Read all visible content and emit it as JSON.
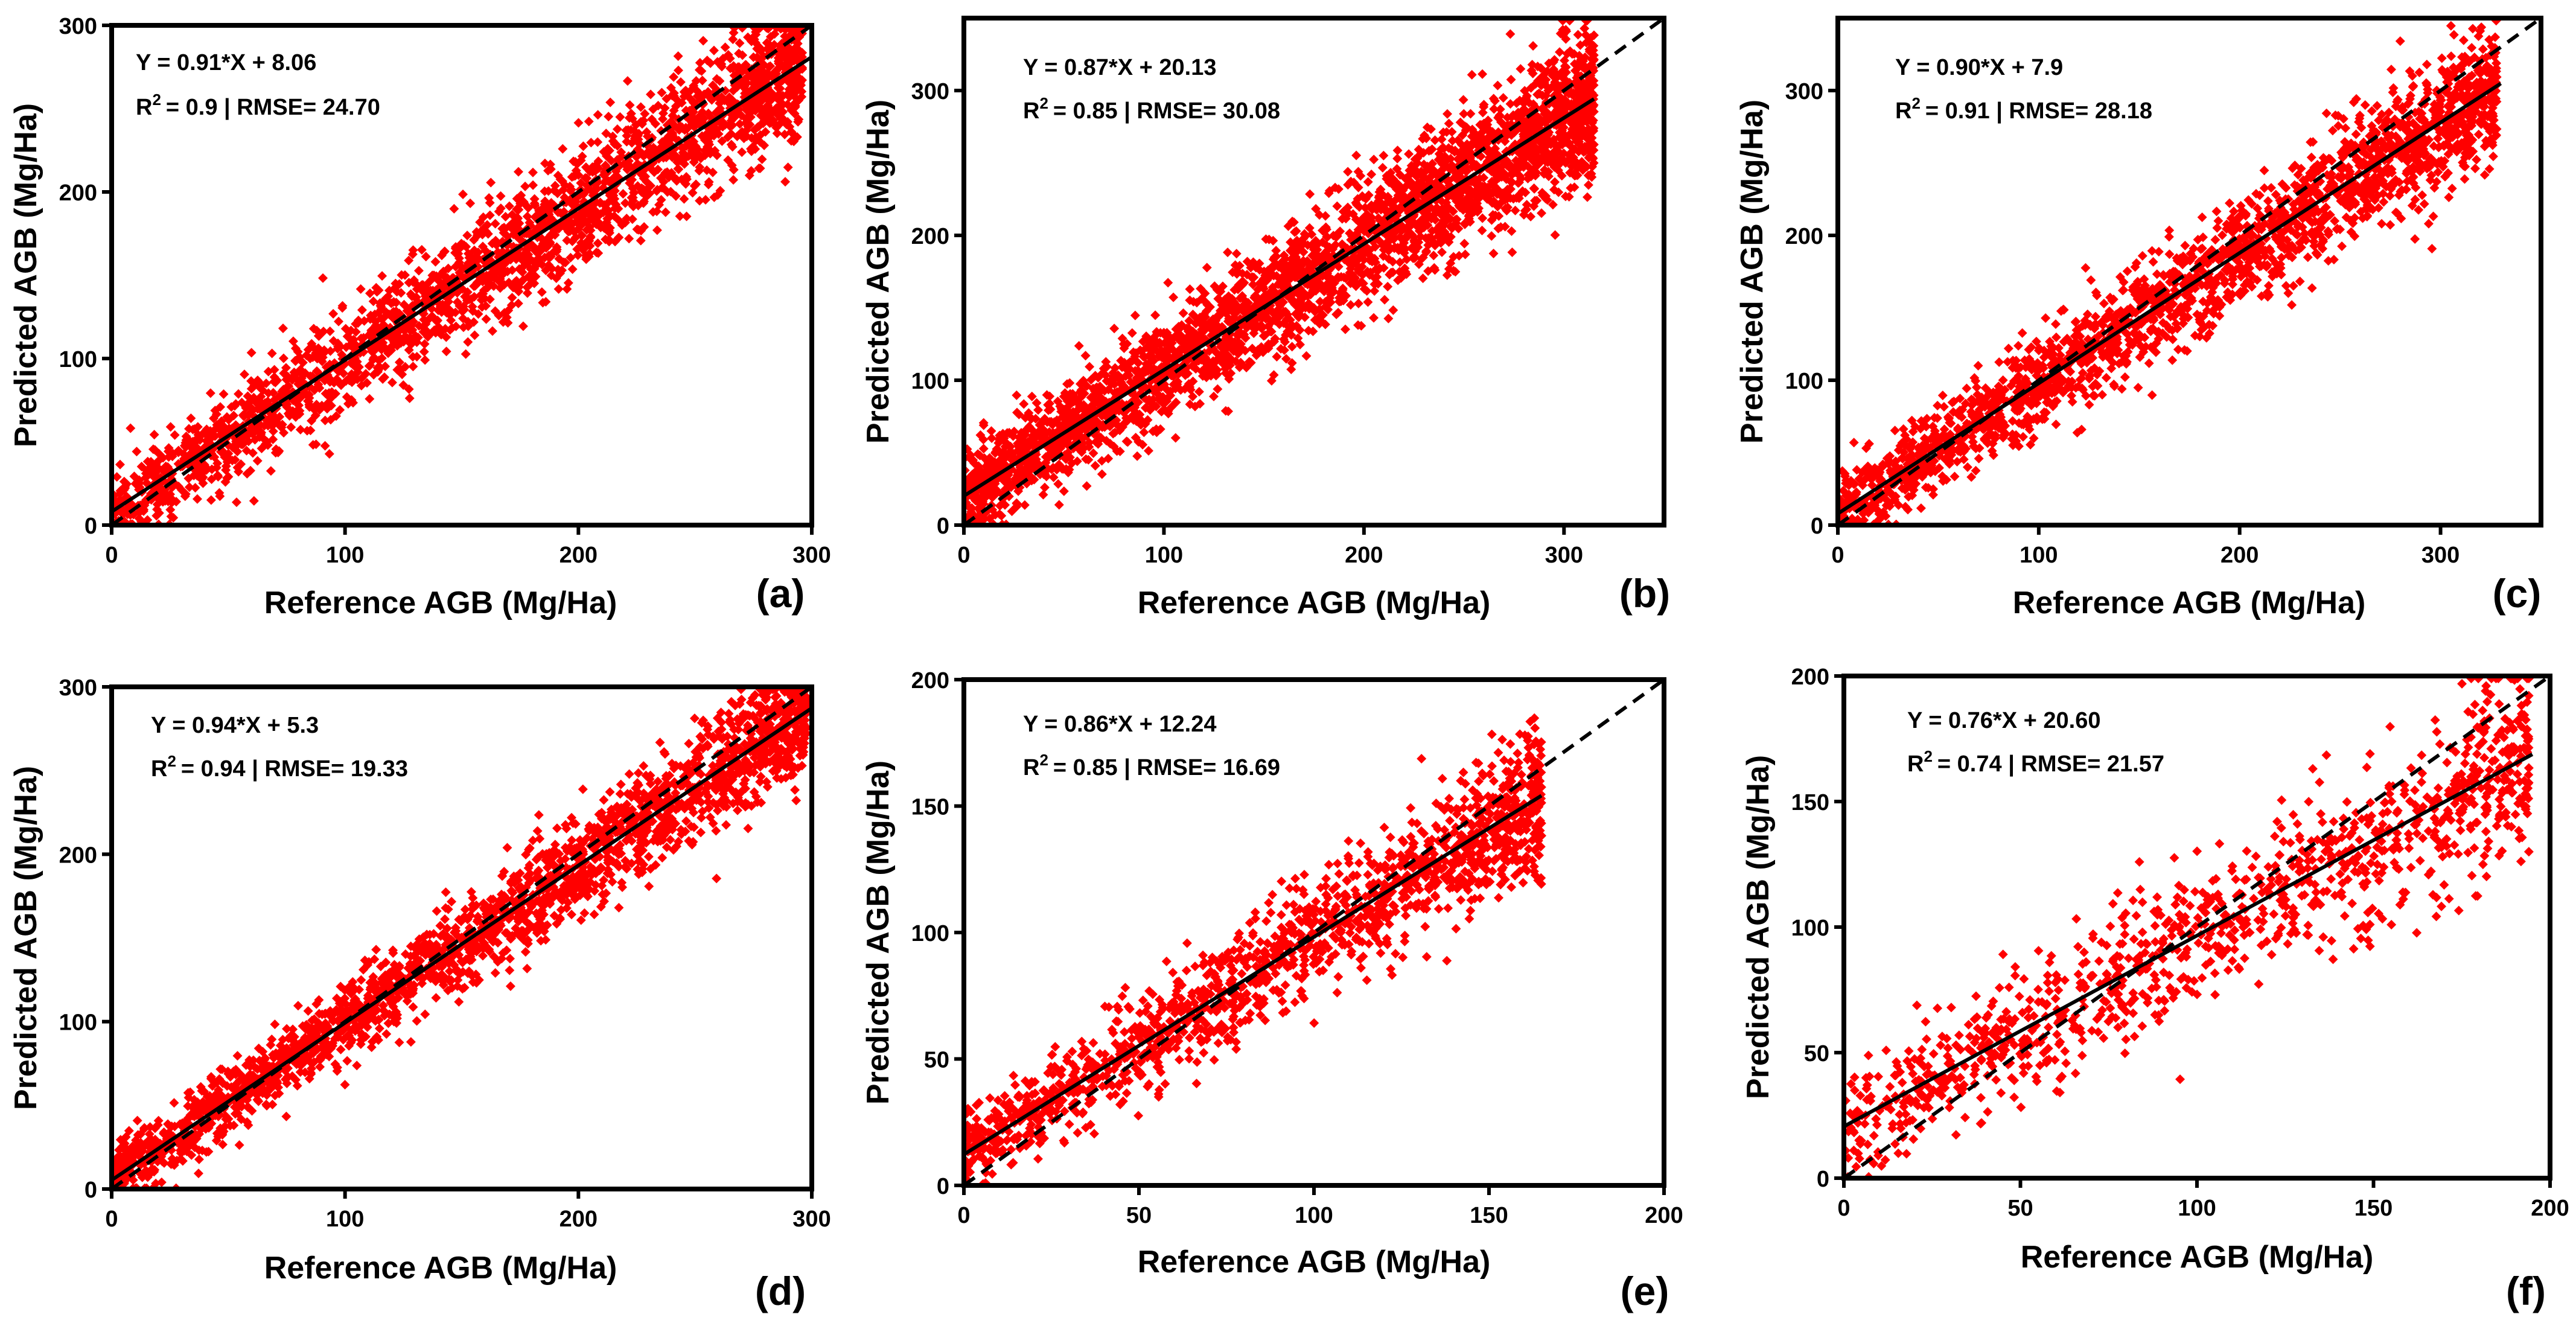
{
  "chart_data": [
    {
      "type": "scatter",
      "panel_label": "(a)",
      "xlabel": "Reference AGB (Mg/Ha)",
      "ylabel": "Predicted AGB (Mg/Ha)",
      "xlim": [
        0,
        300
      ],
      "ylim": [
        0,
        300
      ],
      "xticks": [
        0,
        100,
        200,
        300
      ],
      "yticks": [
        0,
        100,
        200,
        300
      ],
      "equation": "Y = 0.91*X + 8.06",
      "r2_label": "R",
      "r2_sup": "2",
      "r2_stats": "= 0.9 | RMSE= 24.70",
      "fit": {
        "slope": 0.91,
        "intercept": 8.06,
        "x_range": [
          0,
          300
        ]
      },
      "one_to_one": {
        "x_range": [
          0,
          300
        ]
      },
      "sample": {
        "count": 2400,
        "x_max": 296,
        "noise_sd": 22,
        "seed": 11
      },
      "point_color": "#ff0000"
    },
    {
      "type": "scatter",
      "panel_label": "(b)",
      "xlabel": "Reference AGB (Mg/Ha)",
      "ylabel": "Predicted AGB (Mg/Ha)",
      "xlim": [
        0,
        350
      ],
      "ylim": [
        0,
        350
      ],
      "xticks": [
        0,
        100,
        200,
        300
      ],
      "yticks": [
        0,
        100,
        200,
        300
      ],
      "equation": "Y = 0.87*X + 20.13",
      "r2_label": "R",
      "r2_sup": "2",
      "r2_stats": "= 0.85 | RMSE= 30.08",
      "fit": {
        "slope": 0.87,
        "intercept": 20.13,
        "x_range": [
          0,
          315
        ]
      },
      "one_to_one": {
        "x_range": [
          0,
          350
        ]
      },
      "sample": {
        "count": 3200,
        "x_max": 315,
        "noise_sd": 26,
        "seed": 23
      },
      "point_color": "#ff0000"
    },
    {
      "type": "scatter",
      "panel_label": "(c)",
      "xlabel": "Reference AGB (Mg/Ha)",
      "ylabel": "Predicted AGB (Mg/Ha)",
      "xlim": [
        0,
        350
      ],
      "ylim": [
        0,
        350
      ],
      "xticks": [
        0,
        100,
        200,
        300
      ],
      "yticks": [
        0,
        100,
        200,
        300
      ],
      "equation": "Y = 0.90*X + 7.9",
      "r2_label": "R",
      "r2_sup": "2",
      "r2_stats": "= 0.91 | RMSE= 28.18",
      "fit": {
        "slope": 0.9,
        "intercept": 7.9,
        "x_range": [
          0,
          330
        ]
      },
      "one_to_one": {
        "x_range": [
          0,
          350
        ]
      },
      "sample": {
        "count": 2200,
        "x_max": 328,
        "noise_sd": 24,
        "seed": 37
      },
      "point_color": "#ff0000"
    },
    {
      "type": "scatter",
      "panel_label": "(d)",
      "xlabel": "Reference AGB (Mg/Ha)",
      "ylabel": "Predicted AGB (Mg/Ha)",
      "xlim": [
        0,
        300
      ],
      "ylim": [
        0,
        300
      ],
      "xticks": [
        0,
        100,
        200,
        300
      ],
      "yticks": [
        0,
        100,
        200,
        300
      ],
      "equation": "Y = 0.94*X + 5.3",
      "r2_label": "R",
      "r2_sup": "2",
      "r2_stats": "= 0.94 | RMSE= 19.33",
      "fit": {
        "slope": 0.94,
        "intercept": 5.3,
        "x_range": [
          0,
          300
        ]
      },
      "one_to_one": {
        "x_range": [
          0,
          300
        ]
      },
      "sample": {
        "count": 2200,
        "x_max": 298,
        "noise_sd": 17,
        "seed": 41
      },
      "point_color": "#ff0000"
    },
    {
      "type": "scatter",
      "panel_label": "(e)",
      "xlabel": "Reference AGB (Mg/Ha)",
      "ylabel": "Predicted AGB (Mg/Ha)",
      "xlim": [
        0,
        200
      ],
      "ylim": [
        0,
        200
      ],
      "xticks": [
        0,
        50,
        100,
        150,
        200
      ],
      "yticks": [
        0,
        50,
        100,
        150,
        200
      ],
      "equation": "Y = 0.86*X + 12.24",
      "r2_label": "R",
      "r2_sup": "2",
      "r2_stats": "= 0.85 | RMSE= 16.69",
      "fit": {
        "slope": 0.86,
        "intercept": 12.24,
        "x_range": [
          0,
          165
        ]
      },
      "one_to_one": {
        "x_range": [
          0,
          200
        ]
      },
      "sample": {
        "count": 1500,
        "x_max": 165,
        "noise_sd": 14,
        "seed": 53
      },
      "point_color": "#ff0000"
    },
    {
      "type": "scatter",
      "panel_label": "(f)",
      "xlabel": "Reference AGB (Mg/Ha)",
      "ylabel": "Predicted AGB (Mg/Ha)",
      "xlim": [
        0,
        200
      ],
      "ylim": [
        0,
        200
      ],
      "xticks": [
        0,
        50,
        100,
        150,
        200
      ],
      "yticks": [
        0,
        50,
        100,
        150,
        200
      ],
      "equation": "Y = 0.76*X + 20.60",
      "r2_label": "R",
      "r2_sup": "2",
      "r2_stats": "= 0.74 | RMSE= 21.57",
      "fit": {
        "slope": 0.76,
        "intercept": 20.6,
        "x_range": [
          0,
          195
        ]
      },
      "one_to_one": {
        "x_range": [
          0,
          200
        ]
      },
      "sample": {
        "count": 1100,
        "x_max": 194,
        "noise_sd": 19,
        "seed": 67
      },
      "point_color": "#ff0000"
    }
  ]
}
